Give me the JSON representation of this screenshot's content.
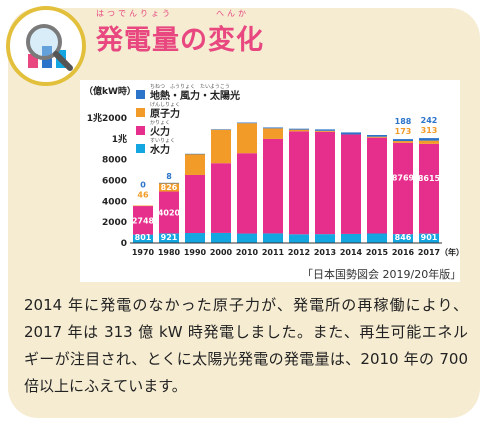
{
  "title": "発電量の変化",
  "title_ruby_1": "はつでんりょう",
  "title_ruby_2": "へんか",
  "source": "「日本国勢図会 2019/20年版」",
  "description": "2014 年に発電のなかった原子力が、発電所の再稼働により、2017 年は 313 億 kW 時発電しました。また、再生可能エネルギーが注目され、とくに太陽光発電の発電量は、2010 年の 700 倍以上にふえています。",
  "colors": {
    "title": "#e8477f",
    "card": "#f5ecd2",
    "renewable": "#2b74c9",
    "nuclear": "#f29b28",
    "thermal": "#e62f8c",
    "hydro": "#14a6e0"
  },
  "chart_data": {
    "type": "bar",
    "stacked": true,
    "ylabel": "（億kW時）",
    "xunit": "（年）",
    "categories": [
      "1970",
      "1980",
      "1990",
      "2000",
      "2010",
      "2011",
      "2012",
      "2013",
      "2014",
      "2015",
      "2016",
      "2017"
    ],
    "yticks": [
      {
        "value": 0,
        "label": "0"
      },
      {
        "value": 2000,
        "label": "2000"
      },
      {
        "value": 4000,
        "label": "4000"
      },
      {
        "value": 6000,
        "label": "6000"
      },
      {
        "value": 8000,
        "label": "8000"
      },
      {
        "value": 10000,
        "label": "1兆"
      },
      {
        "value": 12000,
        "label": "1兆2000"
      }
    ],
    "ylim": [
      0,
      12000
    ],
    "legend_placement": "top-left",
    "series": [
      {
        "name": "水力",
        "ruby": "すいりょく",
        "color": "#14a6e0",
        "values": [
          801,
          921,
          958,
          968,
          907,
          921,
          835,
          849,
          869,
          912,
          846,
          901
        ]
      },
      {
        "name": "火力",
        "ruby": "かりょく",
        "color": "#e62f8c",
        "values": [
          2748,
          4020,
          5573,
          6692,
          7713,
          9069,
          9886,
          9830,
          9552,
          9197,
          8769,
          8615
        ]
      },
      {
        "name": "原子力",
        "ruby": "げんしりょく",
        "color": "#f29b28",
        "values": [
          46,
          826,
          2014,
          3221,
          2882,
          1018,
          159,
          93,
          0,
          94,
          173,
          313
        ]
      },
      {
        "name": "地熱・風力・太陽光",
        "ruby": "ちねつ　ふうりょく　たいようこう",
        "color": "#2b74c9",
        "values": [
          0,
          8,
          18,
          35,
          63,
          84,
          95,
          135,
          197,
          166,
          188,
          242
        ]
      }
    ],
    "data_labels": {
      "1970": {
        "renewable": "0",
        "nuclear": "46",
        "thermal": "2748",
        "hydro": "801"
      },
      "1980": {
        "renewable": "8",
        "nuclear": "826",
        "thermal": "4020",
        "hydro": "921"
      },
      "2016": {
        "renewable": "188",
        "nuclear": "173",
        "thermal": "8769",
        "hydro": "846"
      },
      "2017": {
        "renewable": "242",
        "nuclear": "313",
        "thermal": "8615",
        "hydro": "901"
      }
    }
  }
}
